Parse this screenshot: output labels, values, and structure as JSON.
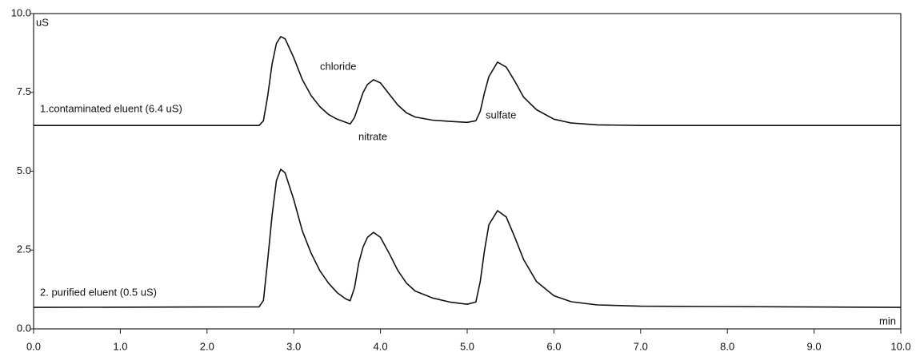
{
  "chart_data": {
    "type": "line",
    "y_label": "uS",
    "x_label": "min",
    "x": [
      0,
      2.6,
      2.65,
      2.7,
      2.75,
      2.8,
      2.85,
      2.9,
      3.0,
      3.1,
      3.2,
      3.3,
      3.4,
      3.5,
      3.6,
      3.65,
      3.7,
      3.75,
      3.8,
      3.85,
      3.92,
      4.0,
      4.1,
      4.2,
      4.3,
      4.4,
      4.6,
      4.8,
      5.0,
      5.1,
      5.15,
      5.2,
      5.25,
      5.35,
      5.45,
      5.55,
      5.65,
      5.8,
      6.0,
      6.2,
      6.5,
      7.0,
      10.0
    ],
    "series": [
      {
        "name": "1.contaminated eluent (6.4 uS)",
        "color": "#111111",
        "values": [
          6.45,
          6.45,
          6.6,
          7.4,
          8.4,
          9.05,
          9.27,
          9.2,
          8.6,
          7.9,
          7.4,
          7.05,
          6.8,
          6.65,
          6.55,
          6.5,
          6.7,
          7.1,
          7.5,
          7.75,
          7.9,
          7.8,
          7.45,
          7.1,
          6.85,
          6.72,
          6.62,
          6.58,
          6.55,
          6.6,
          6.9,
          7.5,
          8.0,
          8.46,
          8.3,
          7.85,
          7.35,
          6.95,
          6.65,
          6.53,
          6.47,
          6.45,
          6.45
        ]
      },
      {
        "name": "2. purified eluent (0.5 uS)",
        "color": "#111111",
        "values": [
          0.68,
          0.7,
          0.9,
          2.2,
          3.6,
          4.7,
          5.06,
          4.95,
          4.1,
          3.1,
          2.4,
          1.85,
          1.45,
          1.15,
          0.95,
          0.89,
          1.3,
          2.1,
          2.6,
          2.9,
          3.06,
          2.9,
          2.4,
          1.85,
          1.45,
          1.2,
          0.98,
          0.85,
          0.78,
          0.85,
          1.5,
          2.5,
          3.3,
          3.75,
          3.55,
          2.9,
          2.2,
          1.5,
          1.05,
          0.86,
          0.76,
          0.72,
          0.68
        ]
      }
    ],
    "annotations": [
      "chloride",
      "nitrate",
      "sulfate"
    ],
    "xlim": [
      0,
      10
    ],
    "ylim": [
      0,
      10
    ],
    "xticks": [
      {
        "value": 0,
        "label": "0.0"
      },
      {
        "value": 1,
        "label": "1.0"
      },
      {
        "value": 2,
        "label": "2.0"
      },
      {
        "value": 3,
        "label": "3.0"
      },
      {
        "value": 4,
        "label": "4.0"
      },
      {
        "value": 5,
        "label": "5.0"
      },
      {
        "value": 6,
        "label": "6.0"
      },
      {
        "value": 7,
        "label": "7.0"
      },
      {
        "value": 8,
        "label": "8.0"
      },
      {
        "value": 9,
        "label": "9.0"
      },
      {
        "value": 10,
        "label": "10.0"
      }
    ],
    "yticks": [
      {
        "value": 0,
        "label": "0.0"
      },
      {
        "value": 2.5,
        "label": "2.5"
      },
      {
        "value": 5,
        "label": "5.0"
      },
      {
        "value": 7.5,
        "label": "7.5"
      },
      {
        "value": 10,
        "label": "10.0"
      }
    ],
    "grid": false
  }
}
